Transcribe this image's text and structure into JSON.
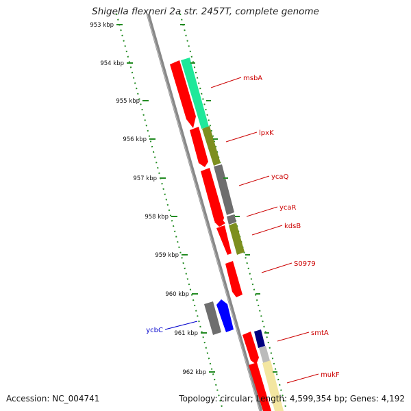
{
  "title": "Shigella flexneri 2a str. 2457T, complete genome",
  "footer": {
    "accession": "Accession: NC_004741",
    "summary": "Topology: circular; Length: 4,599,354 bp; Genes: 4,192"
  },
  "ticks": [
    {
      "label": "953 kbp",
      "kbp": 953
    },
    {
      "label": "954 kbp",
      "kbp": 954
    },
    {
      "label": "955 kbp",
      "kbp": 955
    },
    {
      "label": "956 kbp",
      "kbp": 956
    },
    {
      "label": "957 kbp",
      "kbp": 957
    },
    {
      "label": "958 kbp",
      "kbp": 958
    },
    {
      "label": "959 kbp",
      "kbp": 959
    },
    {
      "label": "960 kbp",
      "kbp": 960
    },
    {
      "label": "961 kbp",
      "kbp": 961
    },
    {
      "label": "962 kbp",
      "kbp": 962
    }
  ],
  "labels": [
    {
      "text": "msbA",
      "color": "#cc0000"
    },
    {
      "text": "lpxK",
      "color": "#cc0000"
    },
    {
      "text": "ycaQ",
      "color": "#cc0000"
    },
    {
      "text": "ycaR",
      "color": "#cc0000"
    },
    {
      "text": "kdsB",
      "color": "#cc0000"
    },
    {
      "text": "S0979",
      "color": "#cc0000"
    },
    {
      "text": "ycbC",
      "color": "#0000cc"
    },
    {
      "text": "smtA",
      "color": "#cc0000"
    },
    {
      "text": "mukF",
      "color": "#cc0000"
    }
  ],
  "colors": {
    "cds_forward": "#ff0000",
    "cds_reverse": "#0000ff",
    "backbone": "#888888",
    "tick": "#228b22"
  }
}
